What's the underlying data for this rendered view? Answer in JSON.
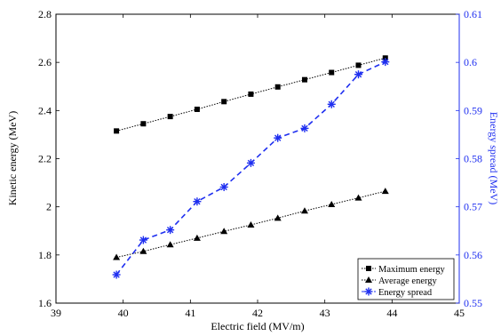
{
  "chart_data": {
    "type": "line",
    "xlabel": "Electric field (MV/m)",
    "ylabel_left": "Kinetic energy (MeV)",
    "ylabel_right": "Energy spread (MeV)",
    "xlim": [
      39,
      45
    ],
    "ylim_left": [
      1.6,
      2.8
    ],
    "ylim_right": [
      0.55,
      0.61
    ],
    "xticks": [
      "39",
      "40",
      "41",
      "42",
      "43",
      "44",
      "45"
    ],
    "yticks_left": [
      "1.6",
      "1.8",
      "2",
      "2.2",
      "2.4",
      "2.6",
      "2.8"
    ],
    "yticks_right": [
      "0.55",
      "0.56",
      "0.57",
      "0.58",
      "0.59",
      "0.6",
      "0.61"
    ],
    "x": [
      39.9,
      40.3,
      40.7,
      41.1,
      41.5,
      41.9,
      42.3,
      42.7,
      43.1,
      43.5,
      43.9
    ],
    "series": [
      {
        "name": "Maximum energy",
        "axis": "left",
        "marker": "square",
        "color": "#000000",
        "values": [
          2.315,
          2.345,
          2.375,
          2.405,
          2.437,
          2.468,
          2.498,
          2.528,
          2.558,
          2.588,
          2.618
        ]
      },
      {
        "name": "Average energy",
        "axis": "left",
        "marker": "triangle",
        "color": "#000000",
        "values": [
          1.79,
          1.815,
          1.843,
          1.87,
          1.898,
          1.925,
          1.953,
          1.983,
          2.01,
          2.037,
          2.065
        ]
      },
      {
        "name": "Energy spread",
        "axis": "right",
        "marker": "asterisk",
        "color": "#1f2ff0",
        "values": [
          0.5559,
          0.5631,
          0.5652,
          0.5711,
          0.5741,
          0.5791,
          0.5843,
          0.5863,
          0.5913,
          0.5975,
          0.6001
        ]
      }
    ],
    "legend": "bottom-right",
    "grid": false,
    "right_axis_color": "#1f2ff0"
  }
}
